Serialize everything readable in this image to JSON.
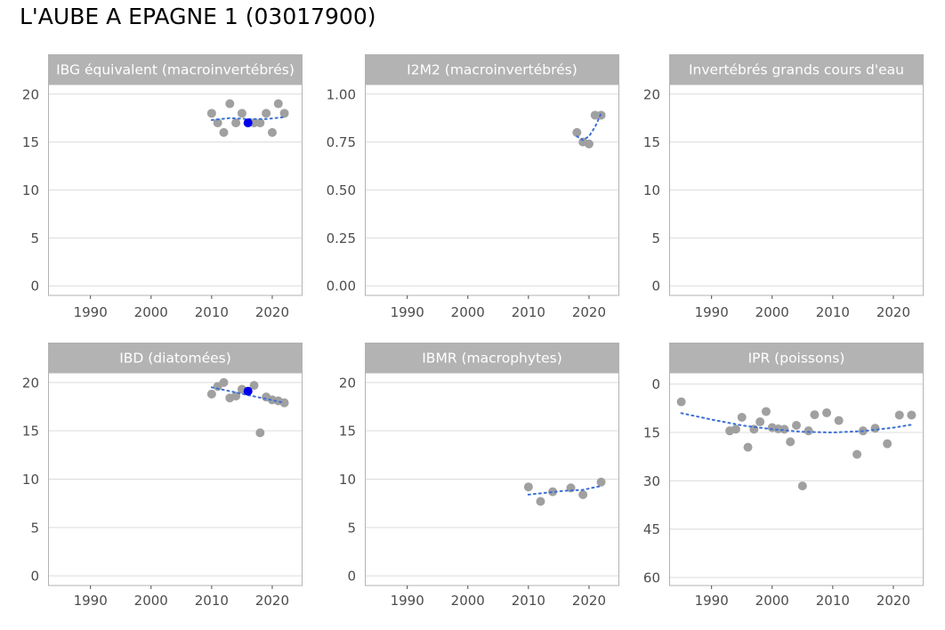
{
  "title": "L'AUBE A EPAGNE 1 (03017900)",
  "colors": {
    "point": "#a0a0a0",
    "highlight": "#0000ee",
    "trend": "#3b6fd6",
    "strip": "#b3b3b3",
    "grid": "#dcdcdc",
    "border": "#b3b3b3"
  },
  "chart_data": [
    {
      "type": "scatter",
      "title": "IBG équivalent (macroinvertébrés)",
      "xlim": [
        1983,
        2025
      ],
      "xticks": [
        1990,
        2000,
        2010,
        2020
      ],
      "ylim": [
        -1,
        21
      ],
      "yticks": [
        0,
        5,
        10,
        15,
        20
      ],
      "ytick_labels": [
        "0",
        "5",
        "10",
        "15",
        "20"
      ],
      "reversed": false,
      "points": [
        [
          2010,
          18
        ],
        [
          2011,
          17
        ],
        [
          2012,
          16
        ],
        [
          2013,
          19
        ],
        [
          2014,
          17
        ],
        [
          2015,
          18
        ],
        [
          2017,
          17
        ],
        [
          2018,
          17
        ],
        [
          2019,
          18
        ],
        [
          2020,
          16
        ],
        [
          2021,
          19
        ],
        [
          2022,
          18
        ]
      ],
      "highlight": [
        [
          2016,
          17
        ]
      ],
      "trend": [
        [
          2010,
          17.3
        ],
        [
          2013,
          17.5
        ],
        [
          2016,
          17.4
        ],
        [
          2019,
          17.4
        ],
        [
          2022,
          17.6
        ]
      ]
    },
    {
      "type": "scatter",
      "title": "I2M2 (macroinvertébrés)",
      "xlim": [
        1983,
        2025
      ],
      "xticks": [
        1990,
        2000,
        2010,
        2020
      ],
      "ylim": [
        -0.05,
        1.05
      ],
      "yticks": [
        0,
        0.25,
        0.5,
        0.75,
        1.0
      ],
      "ytick_labels": [
        "0.00",
        "0.25",
        "0.50",
        "0.75",
        "1.00"
      ],
      "reversed": false,
      "points": [
        [
          2018,
          0.8
        ],
        [
          2019,
          0.75
        ],
        [
          2020,
          0.74
        ],
        [
          2021,
          0.89
        ],
        [
          2022,
          0.89
        ]
      ],
      "highlight": [],
      "trend": [
        [
          2018,
          0.78
        ],
        [
          2019,
          0.76
        ],
        [
          2020,
          0.78
        ],
        [
          2021,
          0.83
        ],
        [
          2022,
          0.9
        ]
      ]
    },
    {
      "type": "scatter",
      "title": "Invertébrés grands cours d'eau",
      "xlim": [
        1983,
        2025
      ],
      "xticks": [
        1990,
        2000,
        2010,
        2020
      ],
      "ylim": [
        -1,
        21
      ],
      "yticks": [
        0,
        5,
        10,
        15,
        20
      ],
      "ytick_labels": [
        "0",
        "5",
        "10",
        "15",
        "20"
      ],
      "reversed": false,
      "points": [],
      "highlight": [],
      "trend": []
    },
    {
      "type": "scatter",
      "title": "IBD (diatomées)",
      "xlim": [
        1983,
        2025
      ],
      "xticks": [
        1990,
        2000,
        2010,
        2020
      ],
      "ylim": [
        -1,
        21
      ],
      "yticks": [
        0,
        5,
        10,
        15,
        20
      ],
      "ytick_labels": [
        "0",
        "5",
        "10",
        "15",
        "20"
      ],
      "reversed": false,
      "points": [
        [
          2010,
          18.8
        ],
        [
          2011,
          19.6
        ],
        [
          2012,
          20.0
        ],
        [
          2013,
          18.4
        ],
        [
          2014,
          18.6
        ],
        [
          2015,
          19.3
        ],
        [
          2017,
          19.7
        ],
        [
          2018,
          14.8
        ],
        [
          2019,
          18.5
        ],
        [
          2020,
          18.2
        ],
        [
          2021,
          18.1
        ],
        [
          2022,
          17.9
        ]
      ],
      "highlight": [
        [
          2016,
          19.1
        ]
      ],
      "trend": [
        [
          2010,
          19.5
        ],
        [
          2013,
          19.1
        ],
        [
          2016,
          18.7
        ],
        [
          2019,
          18.3
        ],
        [
          2022,
          17.9
        ]
      ]
    },
    {
      "type": "scatter",
      "title": "IBMR (macrophytes)",
      "xlim": [
        1983,
        2025
      ],
      "xticks": [
        1990,
        2000,
        2010,
        2020
      ],
      "ylim": [
        -1,
        21
      ],
      "yticks": [
        0,
        5,
        10,
        15,
        20
      ],
      "ytick_labels": [
        "0",
        "5",
        "10",
        "15",
        "20"
      ],
      "reversed": false,
      "points": [
        [
          2010,
          9.2
        ],
        [
          2012,
          7.7
        ],
        [
          2014,
          8.7
        ],
        [
          2017,
          9.1
        ],
        [
          2019,
          8.4
        ],
        [
          2022,
          9.7
        ]
      ],
      "highlight": [],
      "trend": [
        [
          2010,
          8.4
        ],
        [
          2013,
          8.6
        ],
        [
          2016,
          8.8
        ],
        [
          2019,
          8.9
        ],
        [
          2022,
          9.3
        ]
      ]
    },
    {
      "type": "scatter",
      "title": "IPR (poissons)",
      "xlim": [
        1983,
        2025
      ],
      "xticks": [
        1990,
        2000,
        2010,
        2020
      ],
      "ylim": [
        -3.5,
        62.5
      ],
      "yticks": [
        0,
        15,
        30,
        45,
        60
      ],
      "ytick_labels": [
        "0",
        "15",
        "30",
        "45",
        "60"
      ],
      "reversed": true,
      "points": [
        [
          1985,
          5.5
        ],
        [
          1993,
          14.5
        ],
        [
          1994,
          14.0
        ],
        [
          1995,
          10.3
        ],
        [
          1996,
          19.6
        ],
        [
          1997,
          14.0
        ],
        [
          1998,
          11.7
        ],
        [
          1999,
          8.5
        ],
        [
          2000,
          13.5
        ],
        [
          2001,
          13.9
        ],
        [
          2002,
          14.0
        ],
        [
          2003,
          17.9
        ],
        [
          2004,
          12.8
        ],
        [
          2005,
          31.6
        ],
        [
          2006,
          14.5
        ],
        [
          2007,
          9.5
        ],
        [
          2009,
          8.9
        ],
        [
          2011,
          11.3
        ],
        [
          2014,
          21.8
        ],
        [
          2015,
          14.5
        ],
        [
          2017,
          13.7
        ],
        [
          2019,
          18.5
        ],
        [
          2021,
          9.6
        ],
        [
          2023,
          9.6
        ]
      ],
      "highlight": [],
      "trend": [
        [
          1985,
          9.0
        ],
        [
          1990,
          11.0
        ],
        [
          1995,
          12.8
        ],
        [
          2000,
          14.0
        ],
        [
          2005,
          14.8
        ],
        [
          2010,
          15.0
        ],
        [
          2015,
          14.6
        ],
        [
          2020,
          13.5
        ],
        [
          2023,
          12.6
        ]
      ]
    }
  ]
}
